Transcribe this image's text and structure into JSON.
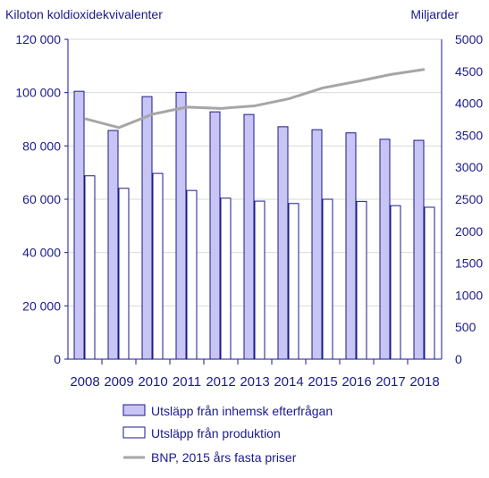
{
  "chart_data": {
    "type": "bar",
    "left_axis_label": "Kiloton koldioxidekvivalenter",
    "right_axis_label": "Miljarder",
    "categories": [
      "2008",
      "2009",
      "2010",
      "2011",
      "2012",
      "2013",
      "2014",
      "2015",
      "2016",
      "2017",
      "2018"
    ],
    "y_left": {
      "min": 0,
      "max": 120000,
      "ticks": [
        "0",
        "20 000",
        "40 000",
        "60 000",
        "80 000",
        "100 000",
        "120 000"
      ]
    },
    "y_right": {
      "min": 0,
      "max": 5000,
      "ticks": [
        "0",
        "500",
        "1000",
        "1500",
        "2000",
        "2500",
        "3000",
        "3500",
        "4000",
        "4500",
        "5000"
      ]
    },
    "grid": true,
    "legend_placement": "bottom",
    "series": [
      {
        "name": "Utsläpp från inhemsk efterfrågan",
        "type": "bar",
        "axis": "left",
        "color": "#c8c4f4",
        "values": [
          100500,
          85800,
          98500,
          100100,
          92800,
          91800,
          87200,
          86100,
          84900,
          82500,
          82100
        ]
      },
      {
        "name": "Utsläpp från produktion",
        "type": "bar",
        "axis": "left",
        "color": "#ffffff",
        "values": [
          68800,
          64100,
          69700,
          63300,
          60400,
          59300,
          58400,
          60000,
          59200,
          57600,
          57000
        ]
      },
      {
        "name": "BNP, 2015 års fasta priser",
        "type": "line",
        "axis": "right",
        "color": "#a6a6a6",
        "values": [
          3760,
          3620,
          3830,
          3940,
          3920,
          3960,
          4070,
          4240,
          4340,
          4450,
          4530
        ]
      }
    ]
  }
}
